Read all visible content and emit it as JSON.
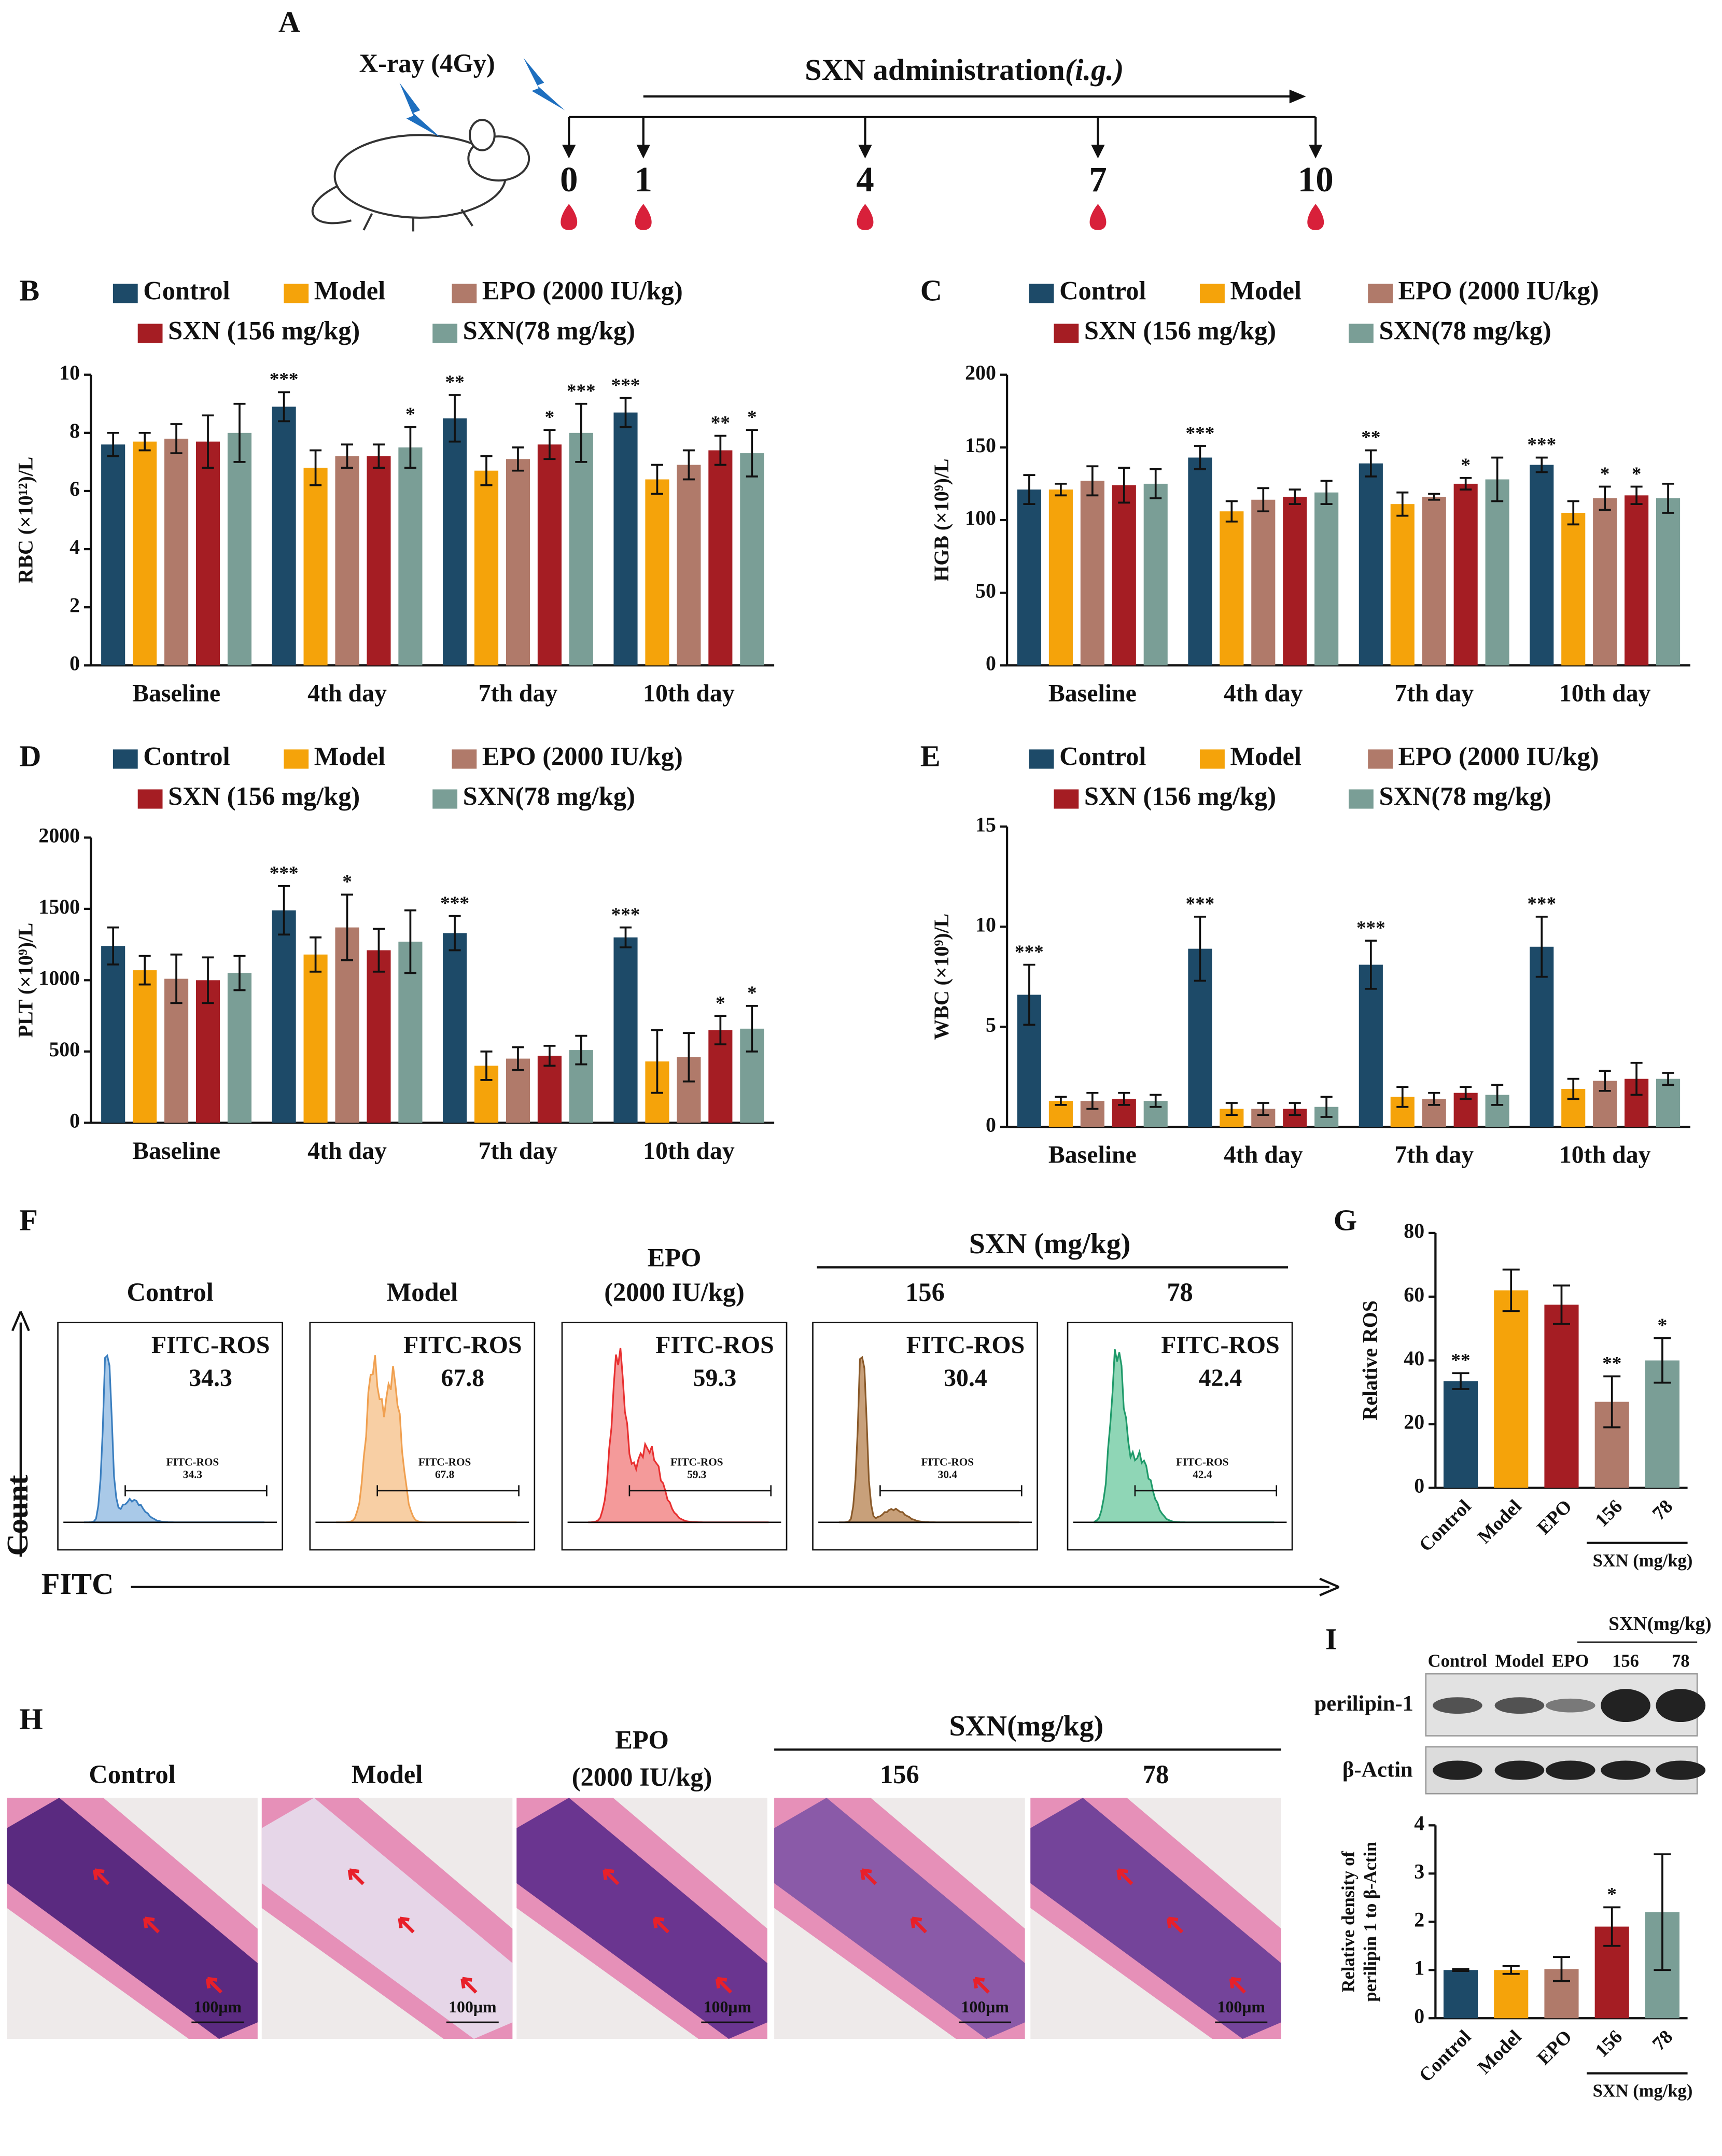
{
  "panel_a": {
    "label": "A",
    "xray": "X-ray (4Gy)",
    "treatment": "SXN administration",
    "route": "(i.g.)",
    "days": [
      0,
      1,
      4,
      7,
      10
    ]
  },
  "chart_data": [
    {
      "type": "bar",
      "panel": "B",
      "ylabel": "RBC (×10¹²)/L",
      "categories": [
        "Baseline",
        "4th day",
        "7th day",
        "10th day"
      ],
      "series": [
        {
          "name": "Control",
          "color": "#1d4a68",
          "values": [
            7.6,
            8.9,
            8.5,
            8.7
          ],
          "errors": [
            0.4,
            0.5,
            0.8,
            0.5
          ],
          "annotations": [
            null,
            "***",
            "**",
            "***"
          ]
        },
        {
          "name": "Model",
          "color": "#f5a30a",
          "values": [
            7.7,
            6.8,
            6.7,
            6.4
          ],
          "errors": [
            0.3,
            0.6,
            0.5,
            0.5
          ],
          "annotations": [
            null,
            null,
            null,
            null
          ]
        },
        {
          "name": "EPO (2000 IU/kg)",
          "color": "#b07a6a",
          "values": [
            7.8,
            7.2,
            7.1,
            6.9
          ],
          "errors": [
            0.5,
            0.4,
            0.4,
            0.5
          ],
          "annotations": [
            null,
            null,
            null,
            null
          ]
        },
        {
          "name": "SXN (156 mg/kg)",
          "color": "#a51d23",
          "values": [
            7.7,
            7.2,
            7.6,
            7.4
          ],
          "errors": [
            0.9,
            0.4,
            0.5,
            0.5
          ],
          "annotations": [
            null,
            null,
            "*",
            "**"
          ]
        },
        {
          "name": "SXN(78 mg/kg)",
          "color": "#7a9e96",
          "values": [
            8.0,
            7.5,
            8.0,
            7.3
          ],
          "errors": [
            1.0,
            0.7,
            1.0,
            0.8
          ],
          "annotations": [
            null,
            "*",
            "***",
            "*"
          ]
        }
      ],
      "ylim": [
        0,
        10
      ],
      "yticks": [
        0,
        2,
        4,
        6,
        8,
        10
      ]
    },
    {
      "type": "bar",
      "panel": "C",
      "ylabel": "HGB (×10⁹)/L",
      "categories": [
        "Baseline",
        "4th day",
        "7th day",
        "10th day"
      ],
      "series": [
        {
          "name": "Control",
          "color": "#1d4a68",
          "values": [
            121,
            143,
            139,
            138
          ],
          "errors": [
            10,
            8,
            9,
            5
          ],
          "annotations": [
            null,
            "***",
            "**",
            "***"
          ]
        },
        {
          "name": "Model",
          "color": "#f5a30a",
          "values": [
            121,
            106,
            111,
            105
          ],
          "errors": [
            4,
            7,
            8,
            8
          ],
          "annotations": [
            null,
            null,
            null,
            null
          ]
        },
        {
          "name": "EPO (2000 IU/kg)",
          "color": "#b07a6a",
          "values": [
            127,
            114,
            116,
            115
          ],
          "errors": [
            10,
            8,
            2,
            8
          ],
          "annotations": [
            null,
            null,
            null,
            "*"
          ]
        },
        {
          "name": "SXN (156 mg/kg)",
          "color": "#a51d23",
          "values": [
            124,
            116,
            125,
            117
          ],
          "errors": [
            12,
            5,
            4,
            6
          ],
          "annotations": [
            null,
            null,
            "*",
            "*"
          ]
        },
        {
          "name": "SXN(78 mg/kg)",
          "color": "#7a9e96",
          "values": [
            125,
            119,
            128,
            115
          ],
          "errors": [
            10,
            8,
            15,
            10
          ],
          "annotations": [
            null,
            null,
            null,
            null
          ]
        }
      ],
      "ylim": [
        0,
        200
      ],
      "yticks": [
        0,
        50,
        100,
        150,
        200
      ]
    },
    {
      "type": "bar",
      "panel": "D",
      "ylabel": "PLT (×10⁹)/L",
      "categories": [
        "Baseline",
        "4th day",
        "7th day",
        "10th day"
      ],
      "series": [
        {
          "name": "Control",
          "color": "#1d4a68",
          "values": [
            1240,
            1490,
            1330,
            1300
          ],
          "errors": [
            130,
            170,
            120,
            70
          ],
          "annotations": [
            null,
            "***",
            "***",
            "***"
          ]
        },
        {
          "name": "Model",
          "color": "#f5a30a",
          "values": [
            1070,
            1180,
            400,
            430
          ],
          "errors": [
            100,
            120,
            100,
            220
          ],
          "annotations": [
            null,
            null,
            null,
            null
          ]
        },
        {
          "name": "EPO (2000 IU/kg)",
          "color": "#b07a6a",
          "values": [
            1010,
            1370,
            450,
            460
          ],
          "errors": [
            170,
            230,
            80,
            170
          ],
          "annotations": [
            null,
            "*",
            null,
            null
          ]
        },
        {
          "name": "SXN (156 mg/kg)",
          "color": "#a51d23",
          "values": [
            1000,
            1210,
            470,
            650
          ],
          "errors": [
            160,
            150,
            70,
            100
          ],
          "annotations": [
            null,
            null,
            null,
            "*"
          ]
        },
        {
          "name": "SXN(78 mg/kg)",
          "color": "#7a9e96",
          "values": [
            1050,
            1270,
            510,
            660
          ],
          "errors": [
            120,
            220,
            100,
            160
          ],
          "annotations": [
            null,
            null,
            null,
            "*"
          ]
        }
      ],
      "ylim": [
        0,
        2000
      ],
      "yticks": [
        0,
        500,
        1000,
        1500,
        2000
      ]
    },
    {
      "type": "bar",
      "panel": "E",
      "ylabel": "WBC (×10⁹)/L",
      "categories": [
        "Baseline",
        "4th day",
        "7th day",
        "10th day"
      ],
      "series": [
        {
          "name": "Control",
          "color": "#1d4a68",
          "values": [
            6.6,
            8.9,
            8.1,
            9.0
          ],
          "errors": [
            1.5,
            1.6,
            1.2,
            1.5
          ],
          "annotations": [
            "***",
            "***",
            "***",
            "***"
          ]
        },
        {
          "name": "Model",
          "color": "#f5a30a",
          "values": [
            1.3,
            0.9,
            1.5,
            1.9
          ],
          "errors": [
            0.2,
            0.3,
            0.5,
            0.5
          ],
          "annotations": [
            null,
            null,
            null,
            null
          ]
        },
        {
          "name": "EPO (2000 IU/kg)",
          "color": "#b07a6a",
          "values": [
            1.3,
            0.9,
            1.4,
            2.3
          ],
          "errors": [
            0.4,
            0.3,
            0.3,
            0.5
          ],
          "annotations": [
            null,
            null,
            null,
            null
          ]
        },
        {
          "name": "SXN (156 mg/kg)",
          "color": "#a51d23",
          "values": [
            1.4,
            0.9,
            1.7,
            2.4
          ],
          "errors": [
            0.3,
            0.3,
            0.3,
            0.8
          ],
          "annotations": [
            null,
            null,
            null,
            null
          ]
        },
        {
          "name": "SXN(78 mg/kg)",
          "color": "#7a9e96",
          "values": [
            1.3,
            1.0,
            1.6,
            2.4
          ],
          "errors": [
            0.3,
            0.5,
            0.5,
            0.3
          ],
          "annotations": [
            null,
            null,
            null,
            null
          ]
        }
      ],
      "ylim": [
        0,
        15
      ],
      "yticks": [
        0,
        5,
        10,
        15
      ]
    },
    {
      "type": "bar",
      "panel": "G",
      "ylabel": "Relative ROS",
      "categories": [
        "Control",
        "Model",
        "EPO",
        "156",
        "78"
      ],
      "values": [
        33.5,
        62,
        57.5,
        27,
        40
      ],
      "errors": [
        2.5,
        6.5,
        6,
        8,
        7
      ],
      "annotations": [
        "**",
        null,
        null,
        "**",
        "*"
      ],
      "colors": [
        "#1d4a68",
        "#f5a30a",
        "#a51d23",
        "#b07a6a",
        "#7a9e96"
      ],
      "group_label": "SXN (mg/kg)",
      "ylim": [
        0,
        80
      ],
      "yticks": [
        0,
        20,
        40,
        60,
        80
      ]
    },
    {
      "type": "bar",
      "ylabel": [
        "Relative density of",
        "perilipin 1 to β-Actin"
      ],
      "categories": [
        "Control",
        "Model",
        "EPO",
        "156",
        "78"
      ],
      "values": [
        1.0,
        1.0,
        1.02,
        1.9,
        2.2
      ],
      "errors": [
        0.02,
        0.08,
        0.25,
        0.4,
        1.2
      ],
      "annotations": [
        null,
        null,
        null,
        "*",
        null
      ],
      "colors": [
        "#1d4a68",
        "#f5a30a",
        "#b07a6a",
        "#a51d23",
        "#7a9e96"
      ],
      "group_label": "SXN (mg/kg)",
      "ylim": [
        0,
        4
      ],
      "yticks": [
        0,
        1,
        2,
        3,
        4
      ]
    }
  ],
  "panel_f": {
    "label": "F",
    "dose_label": "SXN (mg/kg)",
    "y_axis": "Count",
    "x_axis": "FITC",
    "groups": [
      {
        "name": "Control",
        "gate": "FITC-ROS",
        "value": 34.3
      },
      {
        "name": "Model",
        "gate": "FITC-ROS",
        "value": 67.8
      },
      {
        "name": "EPO",
        "sub": "(2000 IU/kg)",
        "gate": "FITC-ROS",
        "value": 59.3
      },
      {
        "name": "156",
        "gate": "FITC-ROS",
        "value": 30.4
      },
      {
        "name": "78",
        "gate": "FITC-ROS",
        "value": 42.4
      }
    ]
  },
  "panel_h": {
    "label": "H",
    "dose_label": "SXN(mg/kg)",
    "scale_bar": "100μm",
    "groups": [
      {
        "name": "Control"
      },
      {
        "name": "Model"
      },
      {
        "name": "EPO",
        "sub": "(2000 IU/kg)"
      },
      {
        "name": "156"
      },
      {
        "name": "78"
      }
    ]
  },
  "panel_i_blot": {
    "label": "I",
    "dose_label": "SXN(mg/kg)",
    "lanes": [
      "Control",
      "Model",
      "EPO",
      "156",
      "78"
    ],
    "proteins": [
      "perilipin-1",
      "β-Actin"
    ]
  }
}
